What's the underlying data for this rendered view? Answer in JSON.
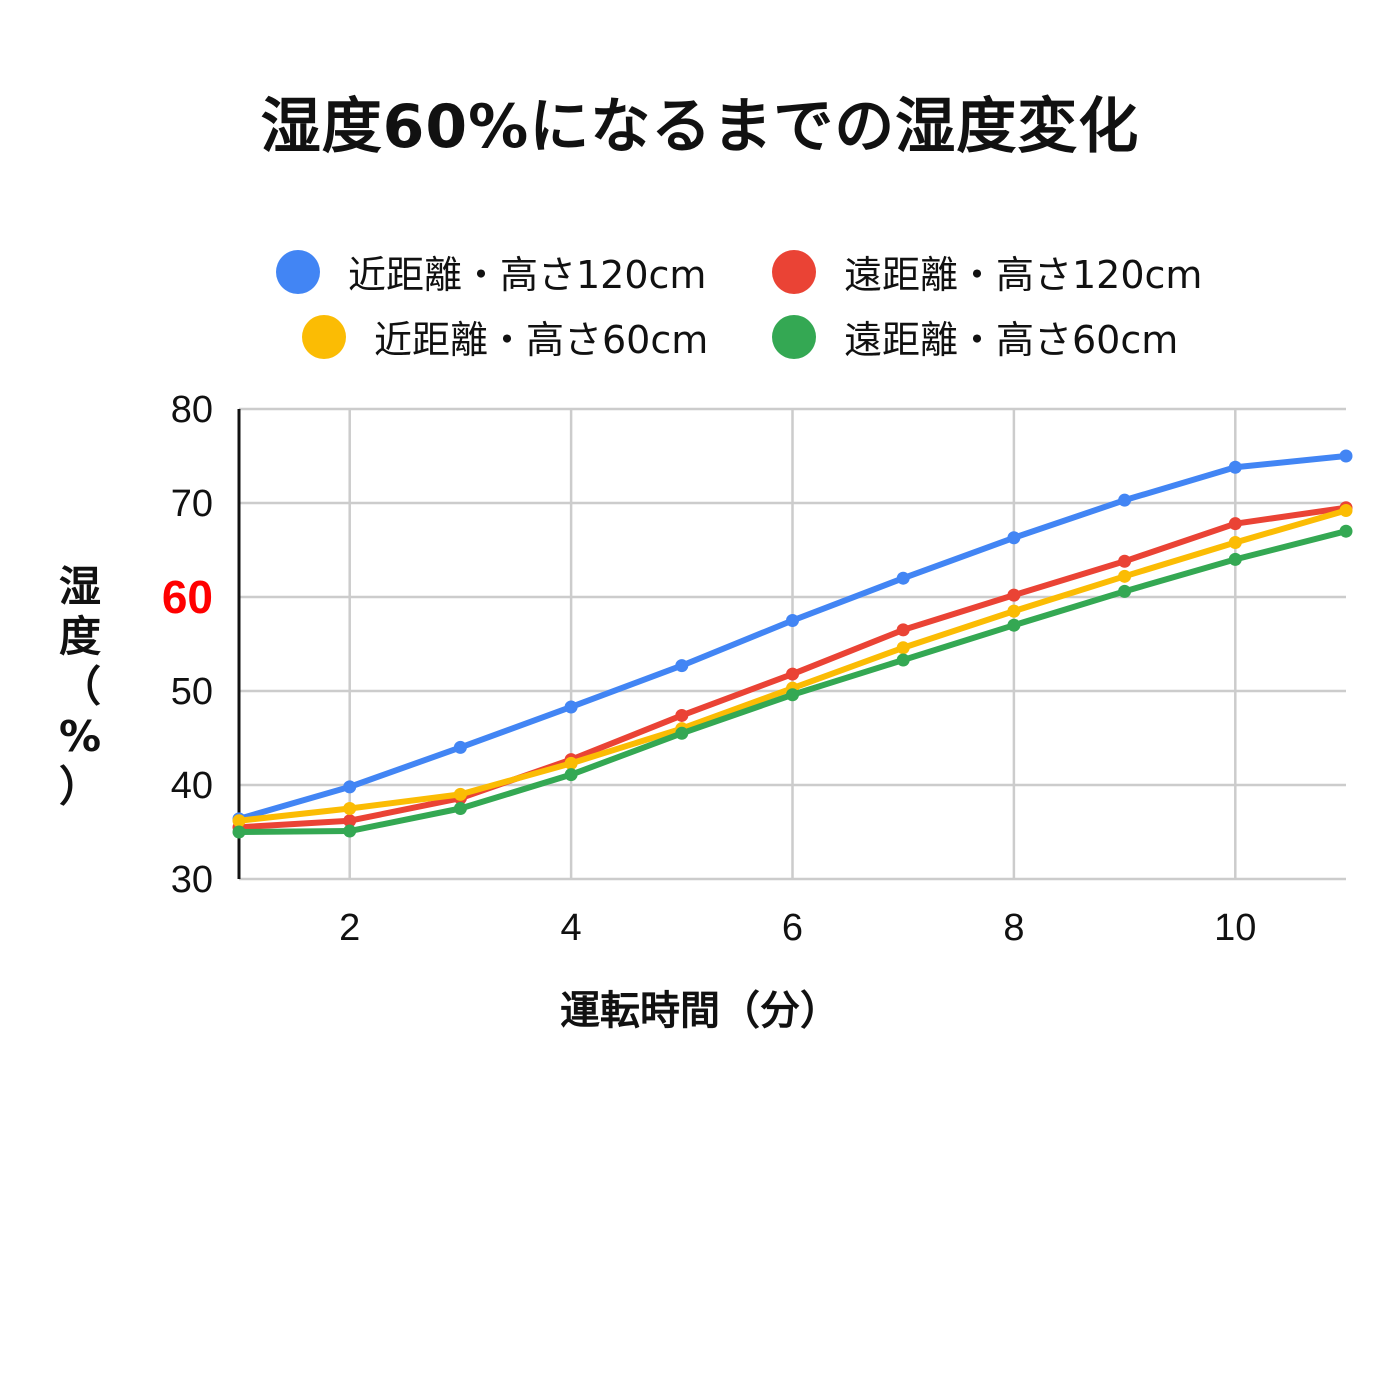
{
  "chart_data": {
    "type": "line",
    "title": "湿度60%になるまでの湿度変化",
    "xlabel": "運転時間（分）",
    "ylabel": "湿度（%）",
    "xlim": [
      1,
      11
    ],
    "ylim": [
      30,
      80
    ],
    "x_ticks": [
      "2",
      "4",
      "6",
      "8",
      "10"
    ],
    "y_ticks": [
      "30",
      "40",
      "50",
      "60",
      "70",
      "80"
    ],
    "highlight_tick": "60",
    "highlight_color": "#ff0000",
    "grid": true,
    "legend_position": "top",
    "x": [
      1,
      2,
      3,
      4,
      5,
      6,
      7,
      8,
      9,
      10,
      11
    ],
    "series": [
      {
        "name": "近距離・高さ120cm",
        "color": "#4285f4",
        "values": [
          36.4,
          39.8,
          44.0,
          48.3,
          52.7,
          57.5,
          62.0,
          66.3,
          70.3,
          73.8,
          75.0
        ]
      },
      {
        "name": "遠距離・高さ120cm",
        "color": "#ea4335",
        "values": [
          35.5,
          36.2,
          38.6,
          42.7,
          47.4,
          51.8,
          56.5,
          60.2,
          63.8,
          67.8,
          69.5
        ]
      },
      {
        "name": "近距離・高さ60cm",
        "color": "#fbbc04",
        "values": [
          36.2,
          37.5,
          39.0,
          42.3,
          46.0,
          50.3,
          54.6,
          58.5,
          62.2,
          65.8,
          69.2
        ]
      },
      {
        "name": "遠距離・高さ60cm",
        "color": "#34a853",
        "values": [
          35.0,
          35.1,
          37.5,
          41.1,
          45.5,
          49.6,
          53.3,
          57.0,
          60.6,
          64.0,
          67.0
        ]
      }
    ]
  }
}
